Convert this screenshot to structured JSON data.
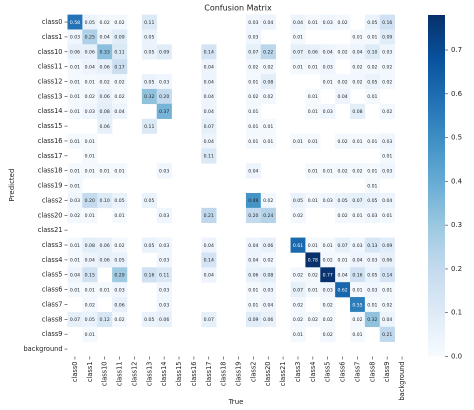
{
  "chart_data": {
    "type": "heatmap",
    "title": "Confusion Matrix",
    "x_label": "True",
    "y_label": "Predicted",
    "x_categories": [
      "class0",
      "class1",
      "class10",
      "class11",
      "class12",
      "class13",
      "class14",
      "class15",
      "class16",
      "class17",
      "class18",
      "class19",
      "class2",
      "class20",
      "class21",
      "class3",
      "class4",
      "class5",
      "class6",
      "class7",
      "class8",
      "class9",
      "background"
    ],
    "y_categories": [
      "class0",
      "class1",
      "class10",
      "class11",
      "class12",
      "class13",
      "class14",
      "class15",
      "class16",
      "class17",
      "class18",
      "class19",
      "class2",
      "class20",
      "class21",
      "class3",
      "class4",
      "class5",
      "class6",
      "class7",
      "class8",
      "class9",
      "background"
    ],
    "values": [
      [
        0.58,
        0.05,
        0.02,
        0.02,
        null,
        0.11,
        null,
        null,
        null,
        null,
        null,
        null,
        0.03,
        0.04,
        null,
        0.04,
        0.01,
        0.03,
        0.02,
        null,
        0.05,
        0.16,
        null
      ],
      [
        0.03,
        0.25,
        0.04,
        0.09,
        null,
        0.05,
        null,
        null,
        null,
        null,
        null,
        null,
        0.03,
        null,
        null,
        0.01,
        null,
        null,
        null,
        0.01,
        0.01,
        0.09,
        null
      ],
      [
        0.06,
        0.06,
        0.33,
        0.11,
        null,
        0.05,
        0.09,
        null,
        null,
        0.14,
        null,
        null,
        0.07,
        0.22,
        null,
        0.07,
        0.06,
        0.04,
        0.02,
        0.04,
        0.1,
        0.03,
        null
      ],
      [
        0.01,
        0.04,
        0.06,
        0.17,
        null,
        null,
        null,
        null,
        null,
        0.04,
        null,
        null,
        0.02,
        0.02,
        null,
        0.01,
        0.01,
        0.03,
        null,
        0.02,
        0.02,
        0.02,
        null
      ],
      [
        0.01,
        0.01,
        0.02,
        0.02,
        null,
        0.05,
        0.03,
        null,
        null,
        0.04,
        null,
        null,
        0.01,
        0.08,
        null,
        null,
        null,
        0.01,
        0.02,
        0.02,
        0.05,
        0.02,
        null
      ],
      [
        0.01,
        0.02,
        0.06,
        0.02,
        null,
        0.32,
        0.2,
        null,
        null,
        0.04,
        null,
        null,
        0.02,
        0.02,
        null,
        null,
        0.01,
        null,
        0.04,
        null,
        0.01,
        null,
        null
      ],
      [
        0.01,
        0.03,
        0.08,
        0.04,
        null,
        null,
        0.37,
        null,
        null,
        0.04,
        null,
        null,
        0.01,
        null,
        null,
        null,
        0.01,
        0.03,
        null,
        0.08,
        null,
        0.02,
        null
      ],
      [
        null,
        null,
        0.06,
        null,
        null,
        0.11,
        null,
        null,
        null,
        0.07,
        null,
        null,
        0.01,
        0.01,
        null,
        null,
        null,
        null,
        null,
        null,
        null,
        null,
        null
      ],
      [
        0.01,
        0.01,
        null,
        null,
        null,
        null,
        null,
        null,
        null,
        0.04,
        null,
        null,
        0.01,
        0.01,
        null,
        0.01,
        0.01,
        null,
        0.02,
        0.01,
        0.01,
        0.03,
        null
      ],
      [
        null,
        0.01,
        null,
        null,
        null,
        null,
        null,
        null,
        null,
        0.11,
        null,
        null,
        null,
        null,
        null,
        null,
        null,
        null,
        null,
        null,
        null,
        0.01,
        null
      ],
      [
        0.01,
        0.01,
        0.01,
        0.01,
        null,
        null,
        0.03,
        null,
        null,
        null,
        null,
        null,
        0.04,
        null,
        null,
        null,
        0.01,
        0.01,
        0.02,
        0.02,
        0.01,
        0.03,
        null
      ],
      [
        0.01,
        null,
        null,
        null,
        null,
        null,
        null,
        null,
        null,
        null,
        null,
        null,
        null,
        null,
        null,
        null,
        null,
        null,
        null,
        null,
        0.01,
        null,
        null
      ],
      [
        0.03,
        0.2,
        0.1,
        0.05,
        null,
        0.05,
        null,
        null,
        null,
        null,
        null,
        null,
        0.48,
        0.02,
        null,
        0.05,
        0.01,
        0.03,
        0.05,
        0.07,
        0.05,
        0.04,
        null
      ],
      [
        0.02,
        0.01,
        null,
        0.01,
        null,
        null,
        0.03,
        null,
        null,
        0.21,
        null,
        null,
        0.2,
        0.24,
        null,
        0.02,
        null,
        null,
        0.02,
        0.01,
        0.03,
        0.01,
        null
      ],
      [
        null,
        null,
        null,
        null,
        null,
        null,
        null,
        null,
        null,
        null,
        null,
        null,
        null,
        null,
        null,
        null,
        null,
        null,
        null,
        null,
        null,
        null,
        null
      ],
      [
        0.01,
        0.08,
        0.06,
        0.02,
        null,
        0.05,
        0.03,
        null,
        null,
        0.04,
        null,
        null,
        0.04,
        0.06,
        null,
        0.61,
        0.01,
        0.01,
        0.07,
        0.03,
        0.13,
        0.09,
        null
      ],
      [
        0.01,
        0.04,
        0.06,
        0.05,
        null,
        null,
        0.03,
        null,
        null,
        0.14,
        null,
        null,
        0.04,
        0.02,
        null,
        null,
        0.78,
        0.02,
        0.01,
        0.04,
        0.03,
        0.06,
        null
      ],
      [
        0.04,
        0.15,
        null,
        0.29,
        null,
        0.16,
        0.11,
        null,
        null,
        0.04,
        null,
        null,
        0.06,
        0.08,
        null,
        0.02,
        0.02,
        0.77,
        0.04,
        0.16,
        0.05,
        0.14,
        null
      ],
      [
        0.01,
        0.01,
        0.01,
        0.03,
        null,
        null,
        0.03,
        null,
        null,
        null,
        null,
        null,
        0.01,
        0.03,
        null,
        0.07,
        0.01,
        0.03,
        0.62,
        0.01,
        0.03,
        0.01,
        null
      ],
      [
        null,
        0.02,
        null,
        0.06,
        null,
        null,
        0.03,
        null,
        null,
        null,
        null,
        null,
        0.01,
        0.04,
        null,
        0.02,
        null,
        0.02,
        null,
        0.55,
        0.01,
        0.02,
        null
      ],
      [
        0.07,
        0.05,
        0.12,
        0.02,
        null,
        0.05,
        0.06,
        null,
        null,
        0.07,
        null,
        null,
        0.09,
        0.06,
        null,
        0.02,
        0.02,
        0.02,
        null,
        0.02,
        0.32,
        0.04,
        null
      ],
      [
        null,
        0.01,
        null,
        null,
        null,
        null,
        null,
        null,
        null,
        null,
        null,
        null,
        null,
        null,
        null,
        0.01,
        null,
        0.02,
        null,
        0.01,
        null,
        0.21,
        null
      ],
      [
        null,
        null,
        null,
        null,
        null,
        null,
        null,
        null,
        null,
        null,
        null,
        null,
        null,
        null,
        null,
        null,
        null,
        null,
        null,
        null,
        null,
        null,
        null
      ]
    ],
    "value_labels": [
      [
        "0.58",
        "0.05",
        "0.02",
        "0.02",
        null,
        "0.11",
        null,
        null,
        null,
        null,
        null,
        null,
        "0.03",
        "0.04",
        null,
        "0.04",
        "0.01",
        "0.03",
        "0.02",
        null,
        "0.05",
        "0.16",
        null
      ],
      [
        "0.03",
        "0.25",
        "0.04",
        "0.09",
        null,
        "0.05",
        null,
        null,
        null,
        null,
        null,
        null,
        "0.03",
        null,
        null,
        "0.01",
        null,
        null,
        null,
        "0.01",
        "0.01",
        "0.09",
        null
      ],
      [
        "0.06",
        "0.06",
        "0.33",
        "0.11",
        null,
        "0.05",
        "0.09",
        null,
        null,
        "0.14",
        null,
        null,
        "0.07",
        "0.22",
        null,
        "0.07",
        "0.06",
        "0.04",
        "0.02",
        "0.04",
        "0.10",
        "0.03",
        null
      ],
      [
        "0.01",
        "0.04",
        "0.06",
        "0.17",
        null,
        null,
        null,
        null,
        null,
        "0.04",
        null,
        null,
        "0.02",
        "0.02",
        null,
        "0.01",
        "0.01",
        "0.03",
        null,
        "0.02",
        "0.02",
        "0.02",
        null
      ],
      [
        "0.01",
        "0.01",
        "0.02",
        "0.02",
        null,
        "0.05",
        "0.03",
        null,
        null,
        "0.04",
        null,
        null,
        "0.01",
        "0.08",
        null,
        null,
        null,
        "0.01",
        "0.02",
        "0.02",
        "0.05",
        "0.02",
        null
      ],
      [
        "0.01",
        "0.02",
        "0.06",
        "0.02",
        null,
        "0.32",
        "0.20",
        null,
        null,
        "0.04",
        null,
        null,
        "0.02",
        "0.02",
        null,
        null,
        "0.01",
        null,
        "0.04",
        null,
        "0.01",
        null,
        null
      ],
      [
        "0.01",
        "0.03",
        "0.08",
        "0.04",
        null,
        null,
        "0.37",
        null,
        null,
        "0.04",
        null,
        null,
        "0.01",
        null,
        null,
        null,
        "0.01",
        "0.03",
        null,
        "0.08",
        null,
        "0.02",
        null
      ],
      [
        null,
        null,
        "0.06",
        null,
        null,
        "0.11",
        null,
        null,
        null,
        "0.07",
        null,
        null,
        "0.01",
        "0.01",
        null,
        null,
        null,
        null,
        null,
        null,
        null,
        null,
        null
      ],
      [
        "0.01",
        "0.01",
        null,
        null,
        null,
        null,
        null,
        null,
        null,
        "0.04",
        null,
        null,
        "0.01",
        "0.01",
        null,
        "0.01",
        "0.01",
        null,
        "0.02",
        "0.01",
        "0.01",
        "0.03",
        null
      ],
      [
        null,
        "0.01",
        null,
        null,
        null,
        null,
        null,
        null,
        null,
        "0.11",
        null,
        null,
        null,
        null,
        null,
        null,
        null,
        null,
        null,
        null,
        null,
        "0.01",
        null
      ],
      [
        "0.01",
        "0.01",
        "0.01",
        "0.01",
        null,
        null,
        "0.03",
        null,
        null,
        null,
        null,
        null,
        "0.04",
        null,
        null,
        null,
        "0.01",
        "0.01",
        "0.02",
        "0.02",
        "0.01",
        "0.03",
        null
      ],
      [
        "0.01",
        null,
        null,
        null,
        null,
        null,
        null,
        null,
        null,
        null,
        null,
        null,
        null,
        null,
        null,
        null,
        null,
        null,
        null,
        null,
        "0.01",
        null,
        null
      ],
      [
        "0.03",
        "0.20",
        "0.10",
        "0.05",
        null,
        "0.05",
        null,
        null,
        null,
        null,
        null,
        null,
        "0.48",
        "0.02",
        null,
        "0.05",
        "0.01",
        "0.03",
        "0.05",
        "0.07",
        "0.05",
        "0.04",
        null
      ],
      [
        "0.02",
        "0.01",
        null,
        "0.01",
        null,
        null,
        "0.03",
        null,
        null,
        "0.21",
        null,
        null,
        "0.20",
        "0.24",
        null,
        "0.02",
        null,
        null,
        "0.02",
        "0.01",
        "0.03",
        "0.01",
        null
      ],
      [
        null,
        null,
        null,
        null,
        null,
        null,
        null,
        null,
        null,
        null,
        null,
        null,
        null,
        null,
        null,
        null,
        null,
        null,
        null,
        null,
        null,
        null,
        null
      ],
      [
        "0.01",
        "0.08",
        "0.06",
        "0.02",
        null,
        "0.05",
        "0.03",
        null,
        null,
        "0.04",
        null,
        null,
        "0.04",
        "0.06",
        null,
        "0.61",
        "0.01",
        "0.01",
        "0.07",
        "0.03",
        "0.13",
        "0.09",
        null
      ],
      [
        "0.01",
        "0.04",
        "0.06",
        "0.05",
        null,
        null,
        "0.03",
        null,
        null,
        "0.14",
        null,
        null,
        "0.04",
        "0.02",
        null,
        null,
        "0.78",
        "0.02",
        "0.01",
        "0.04",
        "0.03",
        "0.06",
        null
      ],
      [
        "0.04",
        "0.15",
        null,
        "0.29",
        null,
        "0.16",
        "0.11",
        null,
        null,
        "0.04",
        null,
        null,
        "0.06",
        "0.08",
        null,
        "0.02",
        "0.02",
        "0.77",
        "0.04",
        "0.16",
        "0.05",
        "0.14",
        null
      ],
      [
        "0.01",
        "0.01",
        "0.01",
        "0.03",
        null,
        null,
        "0.03",
        null,
        null,
        null,
        null,
        null,
        "0.01",
        "0.03",
        null,
        "0.07",
        "0.01",
        "0.03",
        "0.62",
        "0.01",
        "0.03",
        "0.01",
        null
      ],
      [
        null,
        "0.02",
        null,
        "0.06",
        null,
        null,
        "0.03",
        null,
        null,
        null,
        null,
        null,
        "0.01",
        "0.04",
        null,
        "0.02",
        null,
        "0.02",
        null,
        "0.55",
        "0.01",
        "0.02",
        null
      ],
      [
        "0.07",
        "0.05",
        "0.12",
        "0.02",
        null,
        "0.05",
        "0.06",
        null,
        null,
        "0.07",
        null,
        null,
        "0.09",
        "0.06",
        null,
        "0.02",
        "0.02",
        "0.02",
        null,
        "0.02",
        "0.32",
        "0.04",
        null
      ],
      [
        null,
        "0.01",
        null,
        null,
        null,
        null,
        null,
        null,
        null,
        null,
        null,
        null,
        null,
        null,
        null,
        "0.01",
        null,
        "0.02",
        null,
        "0.01",
        null,
        "0.21",
        null
      ],
      [
        null,
        null,
        null,
        null,
        null,
        null,
        null,
        null,
        null,
        null,
        null,
        null,
        null,
        null,
        null,
        null,
        null,
        null,
        null,
        null,
        null,
        null,
        null
      ]
    ],
    "colors": [
      "#f7fbff",
      "#deebf7",
      "#c6dbef",
      "#9ecae1",
      "#6baed6",
      "#4292c6",
      "#2171b5",
      "#08519c",
      "#08306b"
    ],
    "zlim": [
      0,
      0.78
    ],
    "zticks": [
      {
        "value": 0,
        "label": "0.0"
      },
      0.1,
      0.2,
      0.3,
      0.4,
      0.5,
      0.6,
      0.7
    ]
  }
}
